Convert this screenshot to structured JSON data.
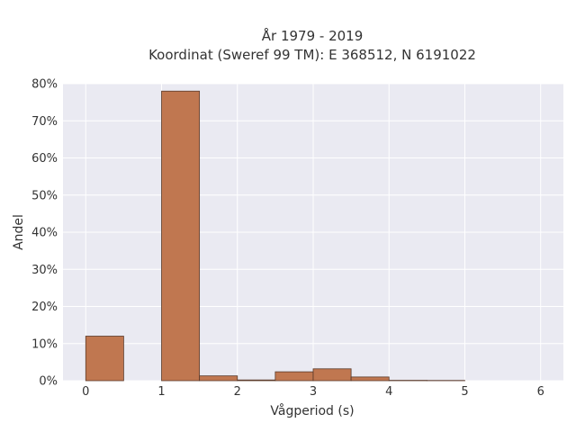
{
  "chart_data": {
    "type": "bar",
    "title": "År 1979 - 2019",
    "subtitle": "Koordinat (Sweref 99 TM): E 368512, N 6191022",
    "xlabel": "Vågperiod (s)",
    "ylabel": "Andel",
    "xlim": [
      -0.3,
      6.3
    ],
    "ylim": [
      0,
      0.8
    ],
    "x_ticks": [
      0,
      1,
      2,
      3,
      4,
      5,
      6
    ],
    "y_ticks": [
      0,
      0.1,
      0.2,
      0.3,
      0.4,
      0.5,
      0.6,
      0.7,
      0.8
    ],
    "y_tick_labels": [
      "0%",
      "10%",
      "20%",
      "30%",
      "40%",
      "50%",
      "60%",
      "70%",
      "80%"
    ],
    "bin_width": 0.5,
    "bins": [
      {
        "start": 0.0,
        "value": 0.12
      },
      {
        "start": 0.5,
        "value": 0.0
      },
      {
        "start": 1.0,
        "value": 0.78
      },
      {
        "start": 1.5,
        "value": 0.013
      },
      {
        "start": 2.0,
        "value": 0.002
      },
      {
        "start": 2.5,
        "value": 0.024
      },
      {
        "start": 3.0,
        "value": 0.032
      },
      {
        "start": 3.5,
        "value": 0.01
      },
      {
        "start": 4.0,
        "value": 0.001
      },
      {
        "start": 4.5,
        "value": 0.0007
      }
    ],
    "grid": true,
    "colors": {
      "bar_fill": "#c07750",
      "bar_edge": "#5a3a2a",
      "plot_bg": "#eaeaf2",
      "grid": "#ffffff"
    }
  }
}
